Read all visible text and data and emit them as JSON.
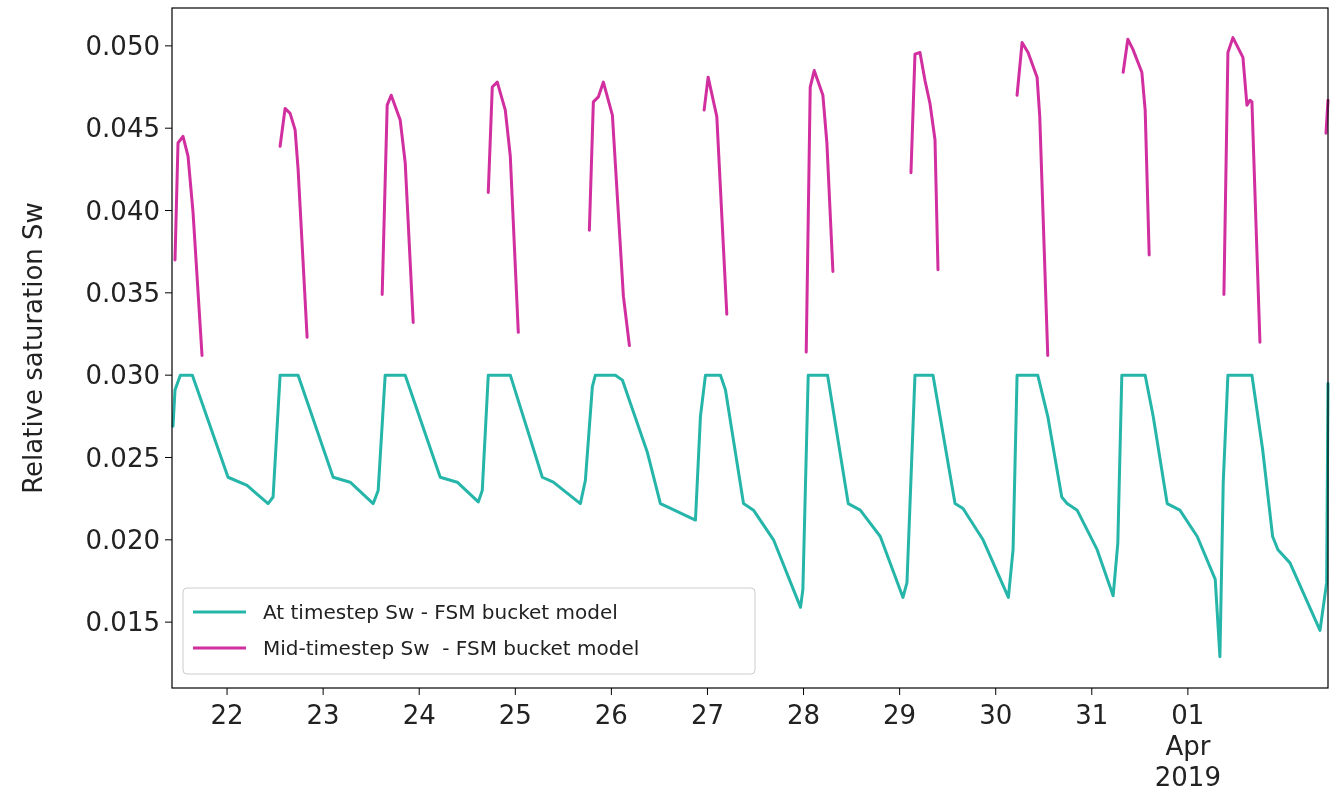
{
  "chart_data": {
    "type": "line",
    "ylabel": "Relative saturation Sw",
    "legend": "bottom left",
    "grid": false,
    "line_style": "solid",
    "marker": "none",
    "xlim": [
      "2019-03-21T10:15",
      "2019-04-02T11:00"
    ],
    "xticks": [
      {
        "value": "2019-03-22",
        "label": "22"
      },
      {
        "value": "2019-03-23",
        "label": "23"
      },
      {
        "value": "2019-03-24",
        "label": "24"
      },
      {
        "value": "2019-03-25",
        "label": "25"
      },
      {
        "value": "2019-03-26",
        "label": "26"
      },
      {
        "value": "2019-03-27",
        "label": "27"
      },
      {
        "value": "2019-03-28",
        "label": "28"
      },
      {
        "value": "2019-03-29",
        "label": "29"
      },
      {
        "value": "2019-03-30",
        "label": "30"
      },
      {
        "value": "2019-03-31",
        "label": "31"
      },
      {
        "value": "2019-04-01",
        "label": "01\nApr\n2019"
      }
    ],
    "ylim": [
      0.011,
      0.0523
    ],
    "yticks": [
      0.015,
      {
        "value": 0.02,
        "label": "0.020"
      },
      0.025,
      {
        "value": 0.03,
        "label": "0.030"
      },
      0.035,
      {
        "value": 0.04,
        "label": "0.040"
      },
      0.045,
      {
        "value": 0.05,
        "label": "0.050"
      }
    ],
    "series": [
      {
        "name": "At timestep Sw - FSM bucket model",
        "color": "#26b5a9",
        "x": [
          "2019-03-21T10:30",
          "2019-03-21T11:00",
          "2019-03-21T12:20",
          "2019-03-21T15:20",
          "2019-03-22T00:15",
          "2019-03-22T05:00",
          "2019-03-22T10:15",
          "2019-03-22T11:30",
          "2019-03-22T13:15",
          "2019-03-22T17:45",
          "2019-03-23T02:30",
          "2019-03-23T06:45",
          "2019-03-23T12:30",
          "2019-03-23T13:45",
          "2019-03-23T15:30",
          "2019-03-23T20:30",
          "2019-03-24T05:15",
          "2019-03-24T09:30",
          "2019-03-24T14:45",
          "2019-03-24T15:45",
          "2019-03-24T17:15",
          "2019-03-24T22:45",
          "2019-03-25T06:45",
          "2019-03-25T09:30",
          "2019-03-25T16:15",
          "2019-03-25T17:30",
          "2019-03-25T19:15",
          "2019-03-25T20:00",
          "2019-03-26T01:00",
          "2019-03-26T02:45",
          "2019-03-26T04:45",
          "2019-03-26T09:00",
          "2019-03-26T12:15",
          "2019-03-26T14:00",
          "2019-03-26T21:00",
          "2019-03-26T22:15",
          "2019-03-26T23:30",
          "2019-03-27T03:15",
          "2019-03-27T04:30",
          "2019-03-27T09:00",
          "2019-03-27T11:30",
          "2019-03-27T16:30",
          "2019-03-27T23:15",
          "2019-03-27T23:50",
          "2019-03-28T01:10",
          "2019-03-28T06:00",
          "2019-03-28T11:10",
          "2019-03-28T14:10",
          "2019-03-28T19:10",
          "2019-03-29T00:50",
          "2019-03-29T01:50",
          "2019-03-29T03:50",
          "2019-03-29T08:20",
          "2019-03-29T13:50",
          "2019-03-29T15:50",
          "2019-03-29T20:50",
          "2019-03-30T03:10",
          "2019-03-30T04:20",
          "2019-03-30T05:20",
          "2019-03-30T06:10",
          "2019-03-30T10:30",
          "2019-03-30T13:00",
          "2019-03-30T16:30",
          "2019-03-30T17:50",
          "2019-03-30T20:20",
          "2019-03-31T01:20",
          "2019-03-31T05:20",
          "2019-03-31T06:30",
          "2019-03-31T07:30",
          "2019-03-31T13:20",
          "2019-03-31T15:20",
          "2019-03-31T18:50",
          "2019-03-31T22:00",
          "2019-04-01T02:20",
          "2019-04-01T06:50",
          "2019-04-01T08:00",
          "2019-04-01T08:50",
          "2019-04-01T10:00",
          "2019-04-01T16:00",
          "2019-04-01T18:40",
          "2019-04-01T21:10",
          "2019-04-01T22:30",
          "2019-04-02T01:30",
          "2019-04-02T09:00",
          "2019-04-02T10:40",
          "2019-04-02T11:00"
        ],
        "values": [
          0.0269,
          0.0291,
          0.03,
          0.03,
          0.0238,
          0.0233,
          0.0222,
          0.0226,
          0.03,
          0.03,
          0.0238,
          0.0235,
          0.0222,
          0.023,
          0.03,
          0.03,
          0.0238,
          0.0235,
          0.0223,
          0.023,
          0.03,
          0.03,
          0.0238,
          0.0235,
          0.0222,
          0.0236,
          0.0293,
          0.03,
          0.03,
          0.0297,
          0.0283,
          0.0253,
          0.0222,
          0.022,
          0.0212,
          0.0275,
          0.03,
          0.03,
          0.0291,
          0.0222,
          0.0218,
          0.02,
          0.0159,
          0.017,
          0.03,
          0.03,
          0.0222,
          0.0218,
          0.0202,
          0.0165,
          0.0174,
          0.03,
          0.03,
          0.0222,
          0.0219,
          0.02,
          0.0165,
          0.0194,
          0.03,
          0.03,
          0.03,
          0.0275,
          0.0226,
          0.0222,
          0.0218,
          0.0194,
          0.0166,
          0.0198,
          0.03,
          0.03,
          0.0275,
          0.0222,
          0.0218,
          0.0202,
          0.0176,
          0.0129,
          0.0235,
          0.03,
          0.03,
          0.0255,
          0.0202,
          0.0194,
          0.0186,
          0.0145,
          0.0174,
          0.0295
        ]
      },
      {
        "name": "Mid-timestep Sw  - FSM bucket model",
        "color": "#d12f9f",
        "x": [
          "2019-03-21T11:00",
          "2019-03-21T11:45",
          "2019-03-21T13:00",
          "2019-03-21T14:15",
          "2019-03-21T15:30",
          "2019-03-21T17:45",
          "2019-03-22T04:00",
          "2019-03-22T13:15",
          "2019-03-22T14:30",
          "2019-03-22T15:45",
          "2019-03-22T17:00",
          "2019-03-22T17:45",
          "2019-03-22T20:00",
          "2019-03-23T05:00",
          "2019-03-23T14:45",
          "2019-03-23T16:00",
          "2019-03-23T17:00",
          "2019-03-23T19:15",
          "2019-03-23T20:30",
          "2019-03-23T22:30",
          "2019-03-24T08:00",
          "2019-03-24T17:15",
          "2019-03-24T18:15",
          "2019-03-24T19:30",
          "2019-03-24T21:30",
          "2019-03-24T22:45",
          "2019-03-25T00:45",
          "2019-03-25T10:00",
          "2019-03-25T18:30",
          "2019-03-25T19:30",
          "2019-03-25T20:45",
          "2019-03-25T22:00",
          "2019-03-26T00:15",
          "2019-03-26T03:00",
          "2019-03-26T04:30",
          "2019-03-26T14:00",
          "2019-03-26T23:10",
          "2019-03-27T00:10",
          "2019-03-27T02:20",
          "2019-03-27T04:50",
          "2019-03-27T15:00",
          "2019-03-28T00:40",
          "2019-03-28T01:40",
          "2019-03-28T02:40",
          "2019-03-28T04:50",
          "2019-03-28T05:50",
          "2019-03-28T07:20",
          "2019-03-28T17:00",
          "2019-03-29T02:50",
          "2019-03-29T03:50",
          "2019-03-29T05:05",
          "2019-03-29T06:20",
          "2019-03-29T07:35",
          "2019-03-29T08:50",
          "2019-03-29T09:35",
          "2019-03-29T20:00",
          "2019-03-30T05:20",
          "2019-03-30T06:35",
          "2019-03-30T08:05",
          "2019-03-30T10:20",
          "2019-03-30T11:00",
          "2019-03-30T13:00",
          "2019-03-30T22:00",
          "2019-03-31T07:50",
          "2019-03-31T09:00",
          "2019-03-31T10:15",
          "2019-03-31T12:30",
          "2019-03-31T13:20",
          "2019-03-31T14:20",
          "2019-04-01T00:00",
          "2019-04-01T09:00",
          "2019-04-01T10:00",
          "2019-04-01T11:15",
          "2019-04-01T13:45",
          "2019-04-01T14:45",
          "2019-04-01T15:30",
          "2019-04-01T16:00",
          "2019-04-01T18:00",
          "2019-04-02T04:00",
          "2019-04-02T10:30",
          "2019-04-02T11:00"
        ],
        "values": [
          0.037,
          0.0441,
          0.0445,
          0.0433,
          0.0399,
          0.0312,
          null,
          0.0439,
          0.0462,
          0.0459,
          0.0449,
          0.0425,
          0.0323,
          null,
          0.0349,
          0.0464,
          0.047,
          0.0455,
          0.0429,
          0.0332,
          null,
          0.0411,
          0.0475,
          0.0478,
          0.0461,
          0.0433,
          0.0326,
          null,
          0.0388,
          0.0466,
          0.0469,
          0.0478,
          0.0458,
          0.0348,
          0.0318,
          null,
          0.0461,
          0.0481,
          0.0457,
          0.0337,
          null,
          0.0314,
          0.0475,
          0.0485,
          0.047,
          0.0441,
          0.0363,
          null,
          0.0423,
          0.0495,
          0.0496,
          0.0479,
          0.0465,
          0.0443,
          0.0364,
          null,
          0.047,
          0.0502,
          0.0496,
          0.0481,
          0.0457,
          0.0312,
          null,
          0.0484,
          0.0504,
          0.0498,
          0.0484,
          0.0461,
          0.0373,
          null,
          0.0349,
          0.0496,
          0.0505,
          0.0493,
          0.0464,
          0.0467,
          0.0466,
          0.032,
          null,
          0.0447,
          0.0467
        ]
      }
    ]
  }
}
